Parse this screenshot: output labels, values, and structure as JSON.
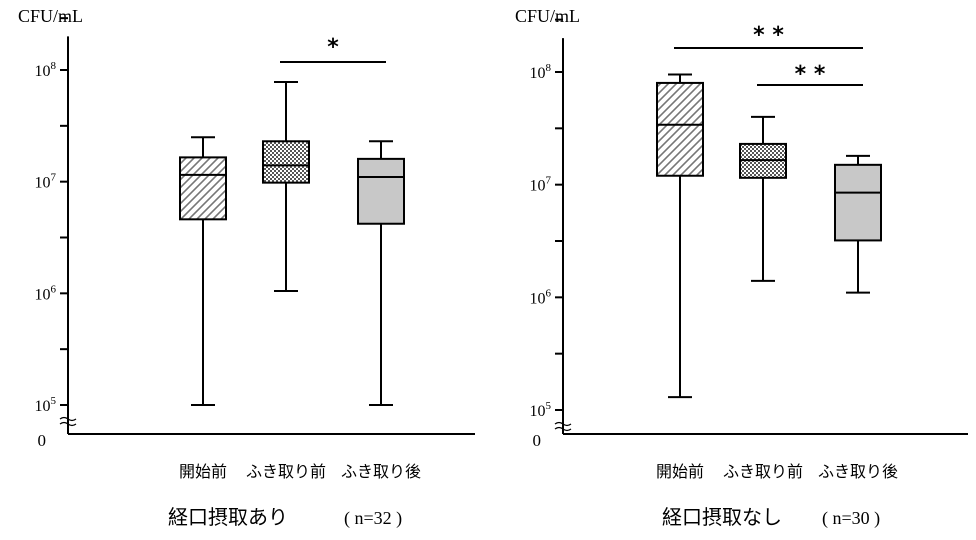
{
  "chart_data": [
    {
      "type": "box",
      "ylabel": "CFU/mL",
      "yscale": "log",
      "ylim": [
        100000,
        200000000
      ],
      "y_ticks": [
        "10^5",
        "10^6",
        "10^7",
        "10^8"
      ],
      "zero_label": "0",
      "axis_break": true,
      "categories": [
        "開始前",
        "ふき取り前",
        "ふき取り後"
      ],
      "title_main": "経口摂取あり",
      "title_n": "( n=32 )",
      "boxes": [
        {
          "category": "開始前",
          "min": 100000,
          "q1": 4600000,
          "median": 11500000,
          "q3": 16500000,
          "max": 25000000,
          "pattern": "hatch"
        },
        {
          "category": "ふき取り前",
          "min": 1050000,
          "q1": 9800000,
          "median": 14000000,
          "q3": 23000000,
          "max": 78000000,
          "pattern": "check"
        },
        {
          "category": "ふき取り後",
          "min": 100000,
          "q1": 4200000,
          "median": 11000000,
          "q3": 16000000,
          "max": 23000000,
          "pattern": "gray"
        }
      ],
      "significance": [
        {
          "from": "ふき取り前",
          "to": "ふき取り後",
          "label": "*"
        }
      ]
    },
    {
      "type": "box",
      "ylabel": "CFU/mL",
      "yscale": "log",
      "ylim": [
        100000,
        200000000
      ],
      "y_ticks": [
        "10^5",
        "10^6",
        "10^7",
        "10^8"
      ],
      "zero_label": "0",
      "axis_break": true,
      "categories": [
        "開始前",
        "ふき取り前",
        "ふき取り後"
      ],
      "title_main": "経口摂取なし",
      "title_n": "( n=30 )",
      "boxes": [
        {
          "category": "開始前",
          "min": 130000,
          "q1": 12000000,
          "median": 34000000,
          "q3": 80000000,
          "max": 95000000,
          "pattern": "hatch"
        },
        {
          "category": "ふき取り前",
          "min": 1400000,
          "q1": 11500000,
          "median": 16500000,
          "q3": 23000000,
          "max": 40000000,
          "pattern": "check"
        },
        {
          "category": "ふき取り後",
          "min": 1100000,
          "q1": 3200000,
          "median": 8500000,
          "q3": 15000000,
          "max": 18000000,
          "pattern": "gray"
        }
      ],
      "significance": [
        {
          "from": "開始前",
          "to": "ふき取り後",
          "label": "* *"
        },
        {
          "from": "ふき取り前",
          "to": "ふき取り後",
          "label": "* *"
        }
      ]
    }
  ]
}
